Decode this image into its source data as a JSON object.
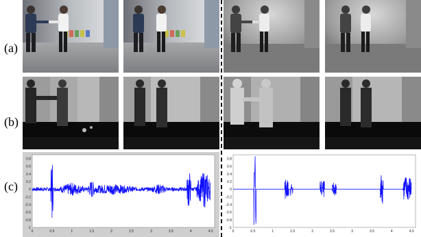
{
  "rows": [
    {
      "label": "(a)"
    },
    {
      "label": "(b)"
    },
    {
      "label": "(c)"
    }
  ],
  "colors": {
    "waveform": "#1010ff",
    "plot_bg": "#ffffff",
    "plot_frame": "#c8c8c8",
    "depth_near": "#2a2a2a",
    "depth_far": "#c0c0c0",
    "floor_dark": "#0a0a0a"
  },
  "plots": [
    {
      "yticks": [
        "0.8",
        "0.6",
        "0.4",
        "0.2",
        "0",
        "-0.2",
        "-0.4",
        "-0.6",
        "-0.8",
        "-1"
      ],
      "xticks": [
        "0",
        "0.5",
        "1",
        "1.5",
        "2",
        "2.5",
        "3",
        "3.5",
        "4",
        "4.5"
      ]
    },
    {
      "yticks": [
        "0.8",
        "0.6",
        "0.4",
        "0.2",
        "0",
        "-0.2",
        "-0.4",
        "-0.6",
        "-0.8",
        "-1"
      ],
      "xticks": [
        "0",
        "0.5",
        "1",
        "1.5",
        "2",
        "2.5",
        "3",
        "3.5",
        "4",
        "4.5"
      ]
    }
  ]
}
